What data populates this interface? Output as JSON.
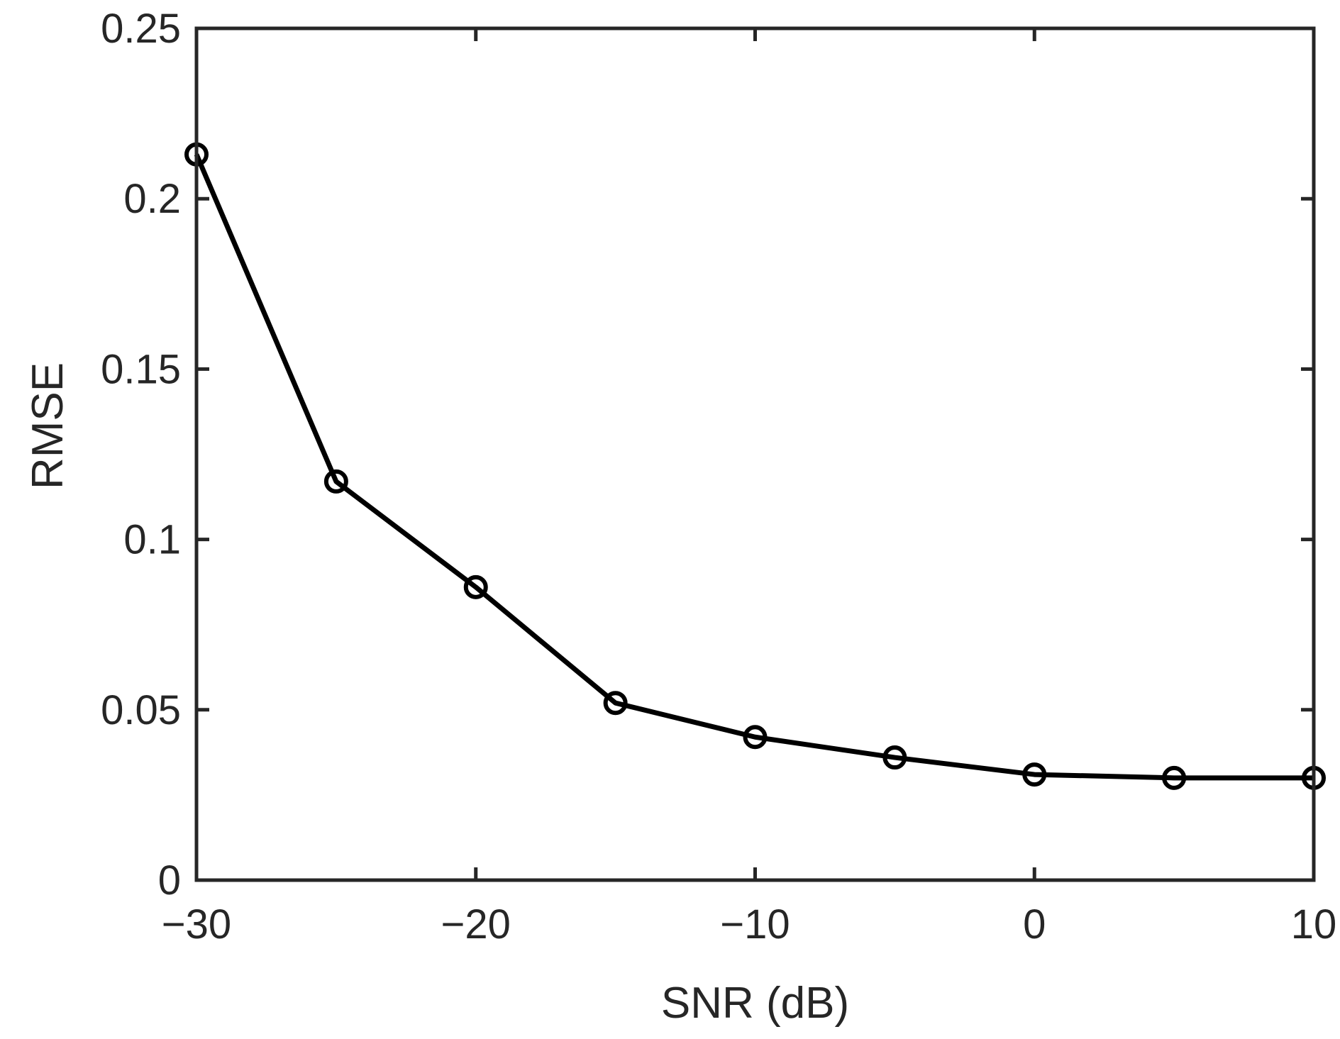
{
  "chart_data": {
    "type": "line",
    "title": "",
    "xlabel": "SNR (dB)",
    "ylabel": "RMSE",
    "xlim": [
      -30,
      10
    ],
    "ylim": [
      0,
      0.25
    ],
    "xticks": [
      -30,
      -20,
      -10,
      0,
      10
    ],
    "xtick_labels": [
      "−30",
      "−20",
      "−10",
      "0",
      "10"
    ],
    "xticks_minor_marks": [
      -30,
      -20,
      -10,
      0,
      10
    ],
    "yticks": [
      0,
      0.05,
      0.1,
      0.15,
      0.2,
      0.25
    ],
    "ytick_labels": [
      "0",
      "0.05",
      "0.1",
      "0.15",
      "0.2",
      "0.25"
    ],
    "grid": false,
    "legend": null,
    "series": [
      {
        "name": "RMSE",
        "color": "#000000",
        "marker": "circle-open",
        "x": [
          -30,
          -25,
          -20,
          -15,
          -10,
          -5,
          0,
          5,
          10
        ],
        "values": [
          0.213,
          0.117,
          0.086,
          0.052,
          0.042,
          0.036,
          0.031,
          0.03,
          0.03
        ]
      }
    ]
  },
  "colors": {
    "axis": "#262626",
    "line": "#000000",
    "background": "#ffffff"
  }
}
